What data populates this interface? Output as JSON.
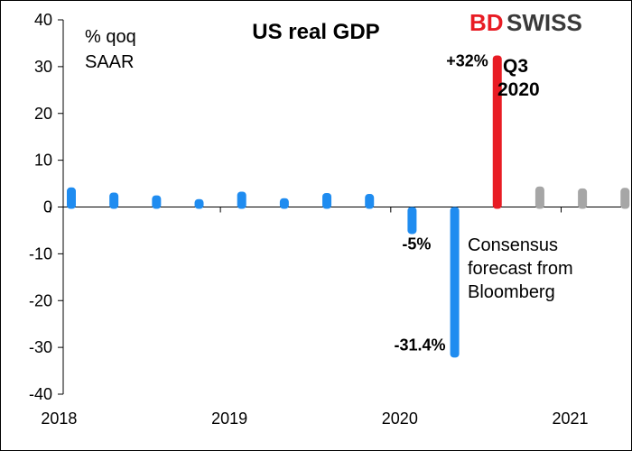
{
  "chart_data": {
    "type": "bar",
    "title": "US real GDP",
    "unit_label_line1": "% qoq",
    "unit_label_line2": "SAAR",
    "ylim": [
      -40,
      40
    ],
    "yticks": [
      40,
      30,
      20,
      10,
      0,
      -10,
      -20,
      -30,
      -40
    ],
    "x_year_labels": [
      "2018",
      "2019",
      "2020",
      "2021"
    ],
    "grid": false,
    "quarters": [
      "2018Q1",
      "2018Q2",
      "2018Q3",
      "2018Q4",
      "2019Q1",
      "2019Q2",
      "2019Q3",
      "2019Q4",
      "2020Q1",
      "2020Q2",
      "2020Q3",
      "2020Q4",
      "2021Q1",
      "2021Q2"
    ],
    "values": [
      3.8,
      2.7,
      2.1,
      1.3,
      2.9,
      1.5,
      2.6,
      2.4,
      -5.0,
      -31.4,
      32.0,
      4.0,
      3.6,
      3.7
    ],
    "kinds": [
      "actual",
      "actual",
      "actual",
      "actual",
      "actual",
      "actual",
      "actual",
      "actual",
      "actual",
      "actual",
      "highlight",
      "forecast",
      "forecast",
      "forecast"
    ],
    "colors": {
      "actual": "#1f8cf0",
      "highlight": "#e81c24",
      "forecast": "#a6a6a6"
    },
    "data_labels": [
      {
        "index": 8,
        "text": "-5%"
      },
      {
        "index": 9,
        "text": "-31.4%"
      },
      {
        "index": 10,
        "text": "+32%"
      }
    ],
    "highlight_label_line1": "Q3",
    "highlight_label_line2": "2020",
    "annotation_lines": [
      "Consensus",
      "forecast from",
      "Bloomberg"
    ]
  },
  "brand": {
    "part1": "BD",
    "part2": "SWISS",
    "color1": "#e81c24",
    "color2": "#3a3a3a"
  }
}
